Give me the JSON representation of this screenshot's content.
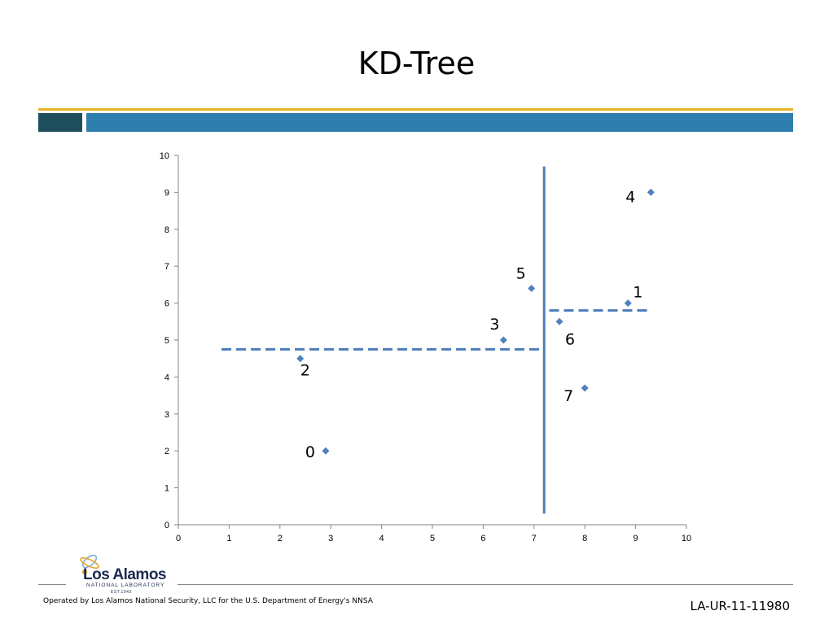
{
  "slide": {
    "title": "KD-Tree",
    "footer_text": "Operated by Los Alamos National Security, LLC for the U.S. Department of Energy's NNSA",
    "doc_id": "LA-UR-11-11980"
  },
  "logo": {
    "name": "Los Alamos",
    "subtitle": "NATIONAL LABORATORY",
    "est": "EST.1943"
  },
  "colors": {
    "gold": "#e8b423",
    "dark_teal": "#1f4e5f",
    "blue": "#2e7eaf",
    "marker": "#4f81bd",
    "split_line": "#4a7ebb"
  },
  "chart_data": {
    "type": "scatter",
    "title": "",
    "xlabel": "",
    "ylabel": "",
    "xlim": [
      0,
      10
    ],
    "ylim": [
      0,
      10
    ],
    "x_ticks": [
      "0",
      "1",
      "2",
      "3",
      "4",
      "5",
      "6",
      "7",
      "8",
      "9",
      "10"
    ],
    "y_ticks": [
      "0",
      "1",
      "2",
      "3",
      "4",
      "5",
      "6",
      "7",
      "8",
      "9",
      "10"
    ],
    "points": [
      {
        "label": "0",
        "x": 2.9,
        "y": 2.0
      },
      {
        "label": "1",
        "x": 8.85,
        "y": 6.0
      },
      {
        "label": "2",
        "x": 2.4,
        "y": 4.5
      },
      {
        "label": "3",
        "x": 6.4,
        "y": 5.0
      },
      {
        "label": "4",
        "x": 9.3,
        "y": 9.0
      },
      {
        "label": "5",
        "x": 6.95,
        "y": 6.4
      },
      {
        "label": "6",
        "x": 7.5,
        "y": 5.5
      },
      {
        "label": "7",
        "x": 8.0,
        "y": 3.7
      }
    ],
    "split_lines": [
      {
        "name": "vertical-split",
        "style": "solid",
        "x1": 7.2,
        "y1": 0.3,
        "x2": 7.2,
        "y2": 9.7
      },
      {
        "name": "left-horizontal-split",
        "style": "dashed",
        "x1": 0.85,
        "y1": 4.75,
        "x2": 7.2,
        "y2": 4.75
      },
      {
        "name": "right-horizontal-split",
        "style": "dashed",
        "x1": 7.3,
        "y1": 5.8,
        "x2": 9.25,
        "y2": 5.8
      }
    ]
  }
}
